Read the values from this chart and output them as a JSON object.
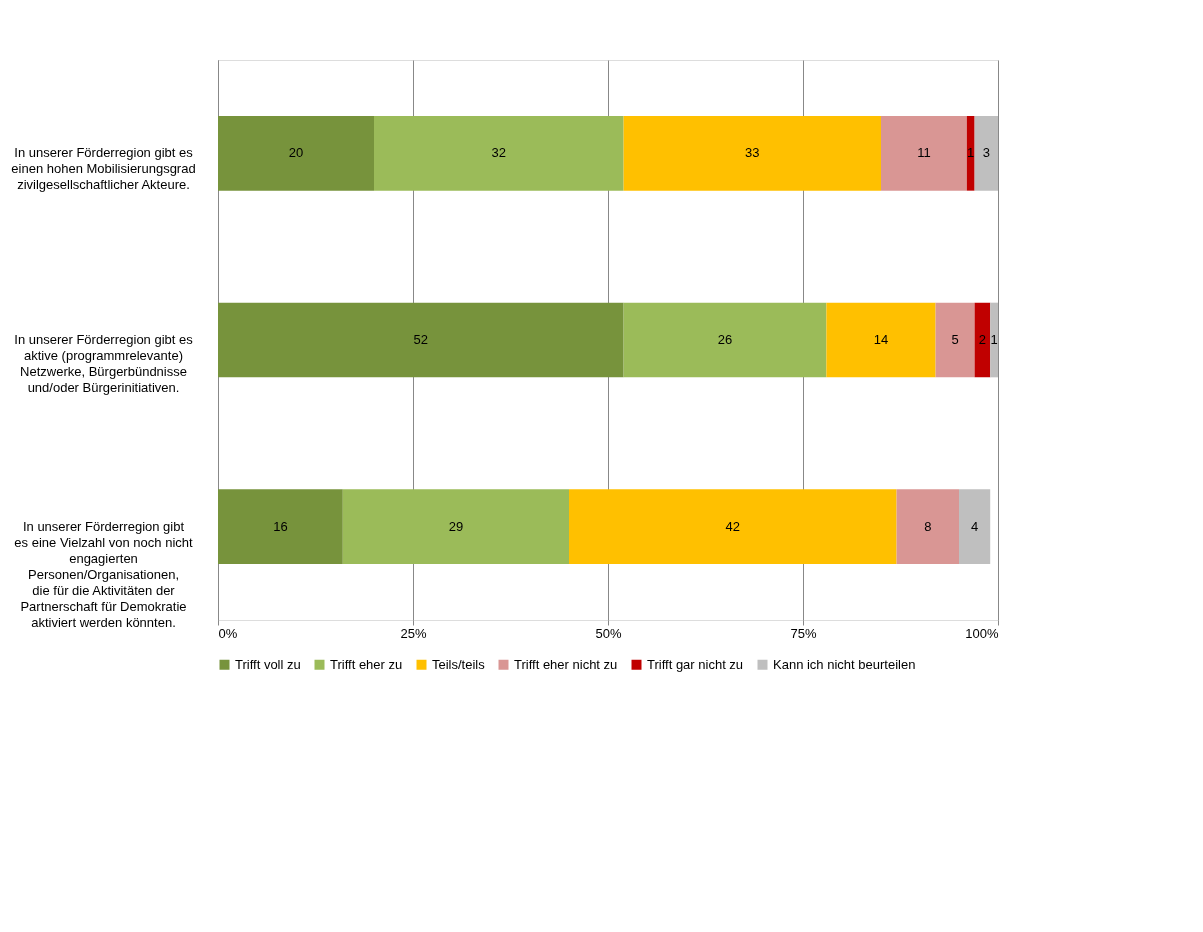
{
  "chart_data": {
    "type": "bar",
    "orientation": "horizontal",
    "stacked": true,
    "categories": [
      "In unserer Förderregion gibt es\neinen hohen Mobilisierungsgrad\nzivilgesellschaftlicher Akteure.",
      "In unserer Förderregion gibt es\naktive (programmrelevante)\nNetzwerke, Bürgerbündnisse\nund/oder Bürgerinitiativen.",
      "In unserer Förderregion gibt\nes eine Vielzahl von noch nicht\nengagierten\nPersonen/Organisationen,\ndie für die Aktivitäten der\nPartnerschaft für Demokratie\naktiviert werden könnten."
    ],
    "series": [
      {
        "name": "Trifft voll zu",
        "color": "#77933c",
        "values": [
          20,
          52,
          16
        ]
      },
      {
        "name": "Trifft eher zu",
        "color": "#9bbb59",
        "values": [
          32,
          26,
          29
        ]
      },
      {
        "name": "Teils/teils",
        "color": "#ffc000",
        "values": [
          33,
          14,
          42
        ]
      },
      {
        "name": "Trifft eher nicht zu",
        "color": "#d99694",
        "values": [
          11,
          5,
          8
        ]
      },
      {
        "name": "Trifft gar nicht zu",
        "color": "#c00000",
        "values": [
          1,
          2,
          null
        ]
      },
      {
        "name": "Kann ich nicht beurteilen",
        "color": "#bfbfbf",
        "values": [
          3,
          1,
          4
        ]
      }
    ],
    "xlim": [
      0,
      100
    ],
    "xticks": [
      {
        "value": 0,
        "label": "0%"
      },
      {
        "value": 25,
        "label": "25%"
      },
      {
        "value": 50,
        "label": "50%"
      },
      {
        "value": 75,
        "label": "75%"
      },
      {
        "value": 100,
        "label": "100%"
      }
    ],
    "grid": "x",
    "legend": "bottom",
    "data_labels": true
  }
}
